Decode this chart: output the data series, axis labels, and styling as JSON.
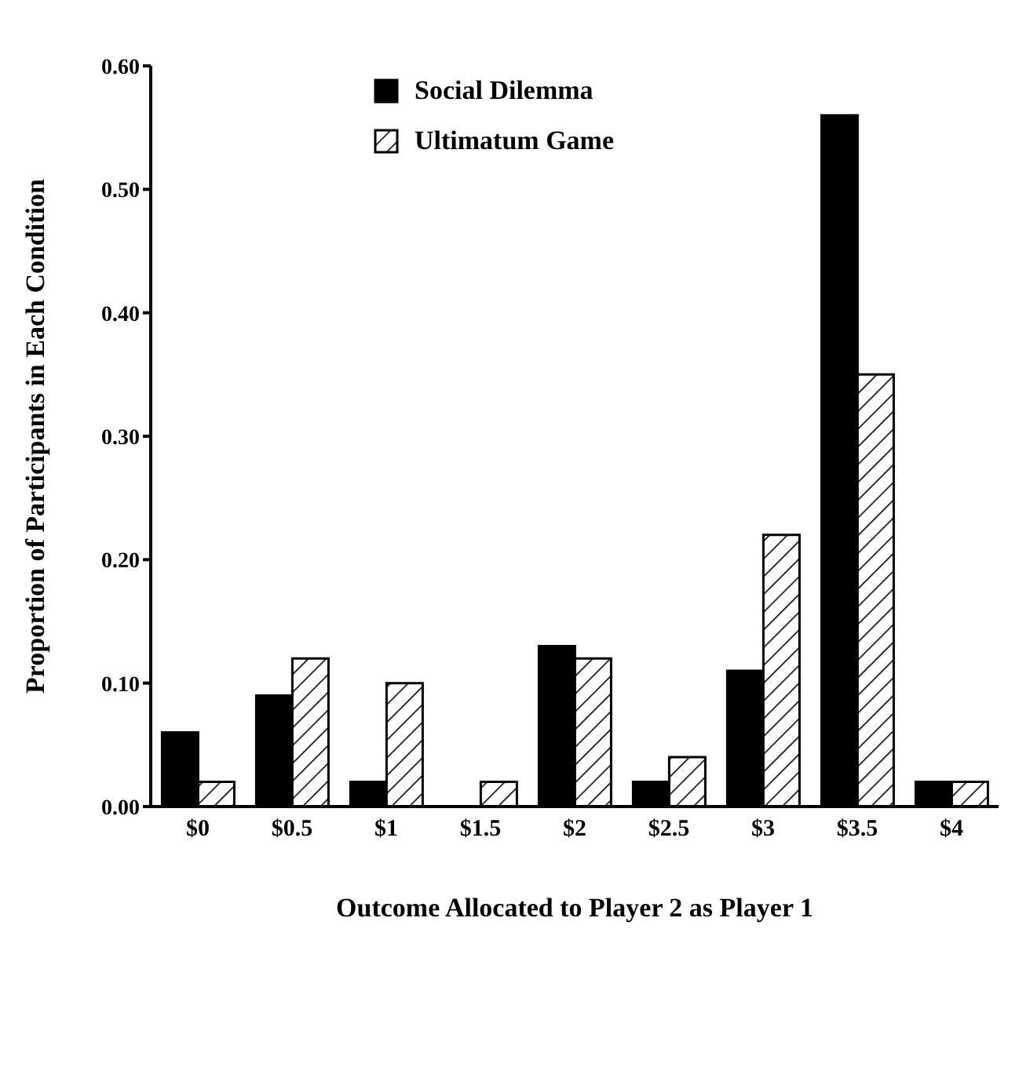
{
  "chart_data": {
    "type": "bar",
    "xlabel": "Outcome Allocated to Player 2 as Player 1",
    "ylabel": "Proportion of Participants in Each Condition",
    "categories": [
      "$0",
      "$0.5",
      "$1",
      "$1.5",
      "$2",
      "$2.5",
      "$3",
      "$3.5",
      "$4"
    ],
    "series": [
      {
        "name": "Social Dilemma",
        "color": "#000000",
        "values": [
          0.06,
          0.09,
          0.02,
          0,
          0.13,
          0.02,
          0.11,
          0.56,
          0.02
        ]
      },
      {
        "name": "Ultimatum Game",
        "color": "#000000",
        "values": [
          0.02,
          0.12,
          0.1,
          0.02,
          0.12,
          0.04,
          0.22,
          0.35,
          0.02
        ]
      }
    ],
    "ylim": [
      0,
      0.6
    ],
    "yticks": [
      {
        "value": 0,
        "label": "0.00"
      },
      {
        "value": 0.1,
        "label": "0.10"
      },
      {
        "value": 0.2,
        "label": "0.20"
      },
      {
        "value": 0.3,
        "label": "0.30"
      },
      {
        "value": 0.4,
        "label": "0.40"
      },
      {
        "value": 0.5,
        "label": "0.50"
      },
      {
        "value": 0.6,
        "label": "0.60"
      }
    ],
    "grid": false,
    "legend": "top"
  }
}
